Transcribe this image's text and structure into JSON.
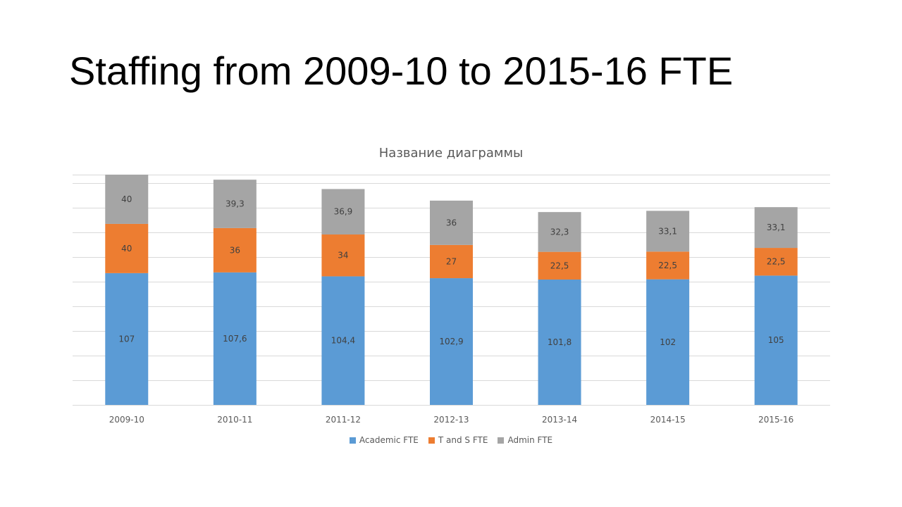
{
  "slide": {
    "title": "Staffing from 2009-10 to 2015-16 FTE"
  },
  "chart_data": {
    "type": "bar",
    "stacked": true,
    "title": "Название диаграммы",
    "categories": [
      "2009-10",
      "2010-11",
      "2011-12",
      "2012-13",
      "2013-14",
      "2014-15",
      "2015-16"
    ],
    "series": [
      {
        "name": "Academic FTE",
        "color": "#5B9BD5",
        "values": [
          107,
          107.6,
          104.4,
          102.9,
          101.8,
          102,
          105
        ],
        "labels": [
          "107",
          "107,6",
          "104,4",
          "102,9",
          "101,8",
          "102",
          "105"
        ]
      },
      {
        "name": "T and S FTE",
        "color": "#ED7D31",
        "values": [
          40,
          36,
          34,
          27,
          22.5,
          22.5,
          22.5
        ],
        "labels": [
          "40",
          "36",
          "34",
          "27",
          "22,5",
          "22,5",
          "22,5"
        ]
      },
      {
        "name": "Admin FTE",
        "color": "#A5A5A5",
        "values": [
          40,
          39.3,
          36.9,
          36,
          32.3,
          33.1,
          33.1
        ],
        "labels": [
          "40",
          "39,3",
          "36,9",
          "36",
          "32,3",
          "33,1",
          "33,1"
        ]
      }
    ],
    "ylim": [
      0,
      187
    ],
    "grid": true,
    "legend_position": "bottom",
    "axis_label_color": "#595959",
    "data_label_color": "#404040",
    "gridline_color": "#D9D9D9"
  }
}
